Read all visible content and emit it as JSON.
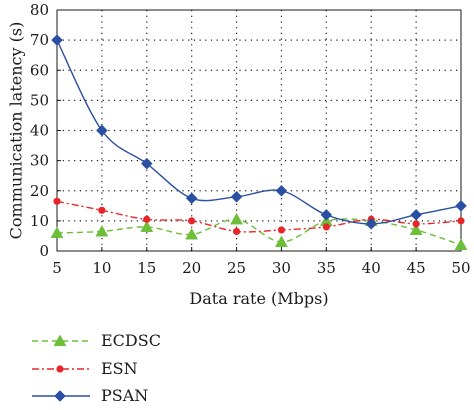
{
  "chart_data": {
    "type": "line",
    "xlabel": "Data rate (Mbps)",
    "ylabel": "Communication latency (s)",
    "x": [
      5,
      10,
      15,
      20,
      25,
      30,
      35,
      40,
      45,
      50
    ],
    "xlim": [
      5,
      50
    ],
    "ylim": [
      0,
      80
    ],
    "xticks": [
      "5",
      "10",
      "15",
      "20",
      "25",
      "30",
      "35",
      "40",
      "45",
      "50"
    ],
    "yticks": [
      "0",
      "10",
      "20",
      "30",
      "40",
      "50",
      "60",
      "70",
      "80"
    ],
    "grid": true,
    "legend_position": "below",
    "series": [
      {
        "name": "ECDSC",
        "values": [
          6,
          6.5,
          8,
          5.5,
          10.5,
          3,
          10,
          10,
          7,
          2
        ],
        "color": "#6dbf3a",
        "line_style": "dashed",
        "marker": "triangle"
      },
      {
        "name": "ESN",
        "values": [
          16.5,
          13.5,
          10.5,
          10,
          6.5,
          7,
          8,
          10.5,
          9,
          10
        ],
        "color": "#e8262a",
        "line_style": "dashdot",
        "marker": "circle"
      },
      {
        "name": "PSAN",
        "values": [
          70,
          40,
          29,
          17.5,
          18,
          20,
          12,
          9,
          12,
          15
        ],
        "color": "#2a4fa3",
        "line_style": "solid",
        "marker": "diamond"
      }
    ]
  }
}
